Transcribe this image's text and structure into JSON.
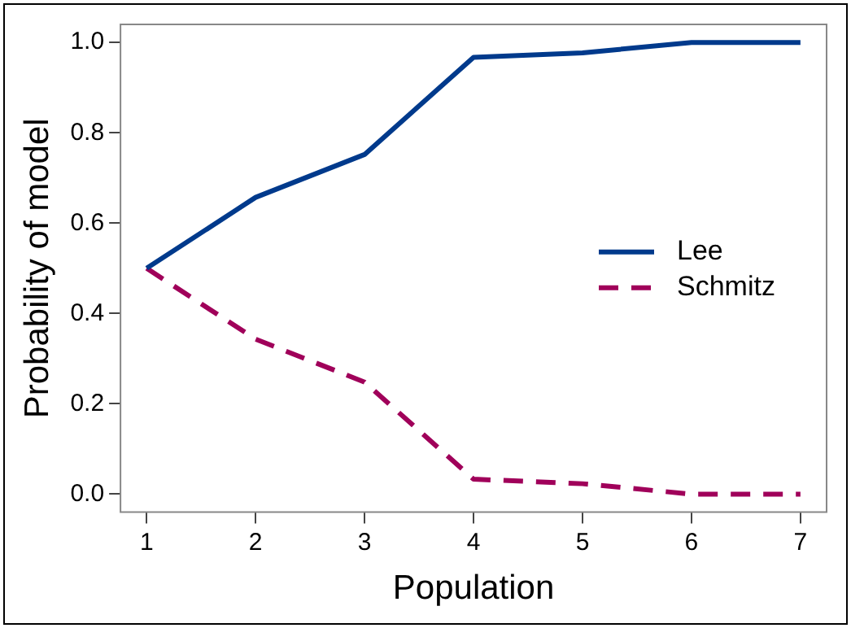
{
  "chart_data": {
    "type": "line",
    "xlabel": "Population",
    "ylabel": "Probability of model",
    "x": [
      1,
      2,
      3,
      4,
      5,
      6,
      7
    ],
    "series": [
      {
        "name": "Lee",
        "color": "#003a8c",
        "line_style": "solid",
        "values": [
          0.5,
          0.657,
          0.752,
          0.967,
          0.977,
          1.0,
          1.0
        ]
      },
      {
        "name": "Schmitz",
        "color": "#a0005a",
        "line_style": "dashed",
        "values": [
          0.5,
          0.343,
          0.248,
          0.033,
          0.023,
          0.0,
          0.0
        ]
      }
    ],
    "xlim": [
      0.76,
      7.24
    ],
    "xticks": [
      1,
      2,
      3,
      4,
      5,
      6,
      7
    ],
    "ylim": [
      -0.04,
      1.04
    ],
    "yticks": [
      {
        "value": 0,
        "label": "0.0"
      },
      {
        "value": 0.2,
        "label": "0.2"
      },
      {
        "value": 0.4,
        "label": "0.4"
      },
      {
        "value": 0.6,
        "label": "0.6"
      },
      {
        "value": 0.8,
        "label": "0.8"
      },
      {
        "value": 1,
        "label": "1.0"
      }
    ],
    "grid": false,
    "legend": "right",
    "marker": "none"
  }
}
